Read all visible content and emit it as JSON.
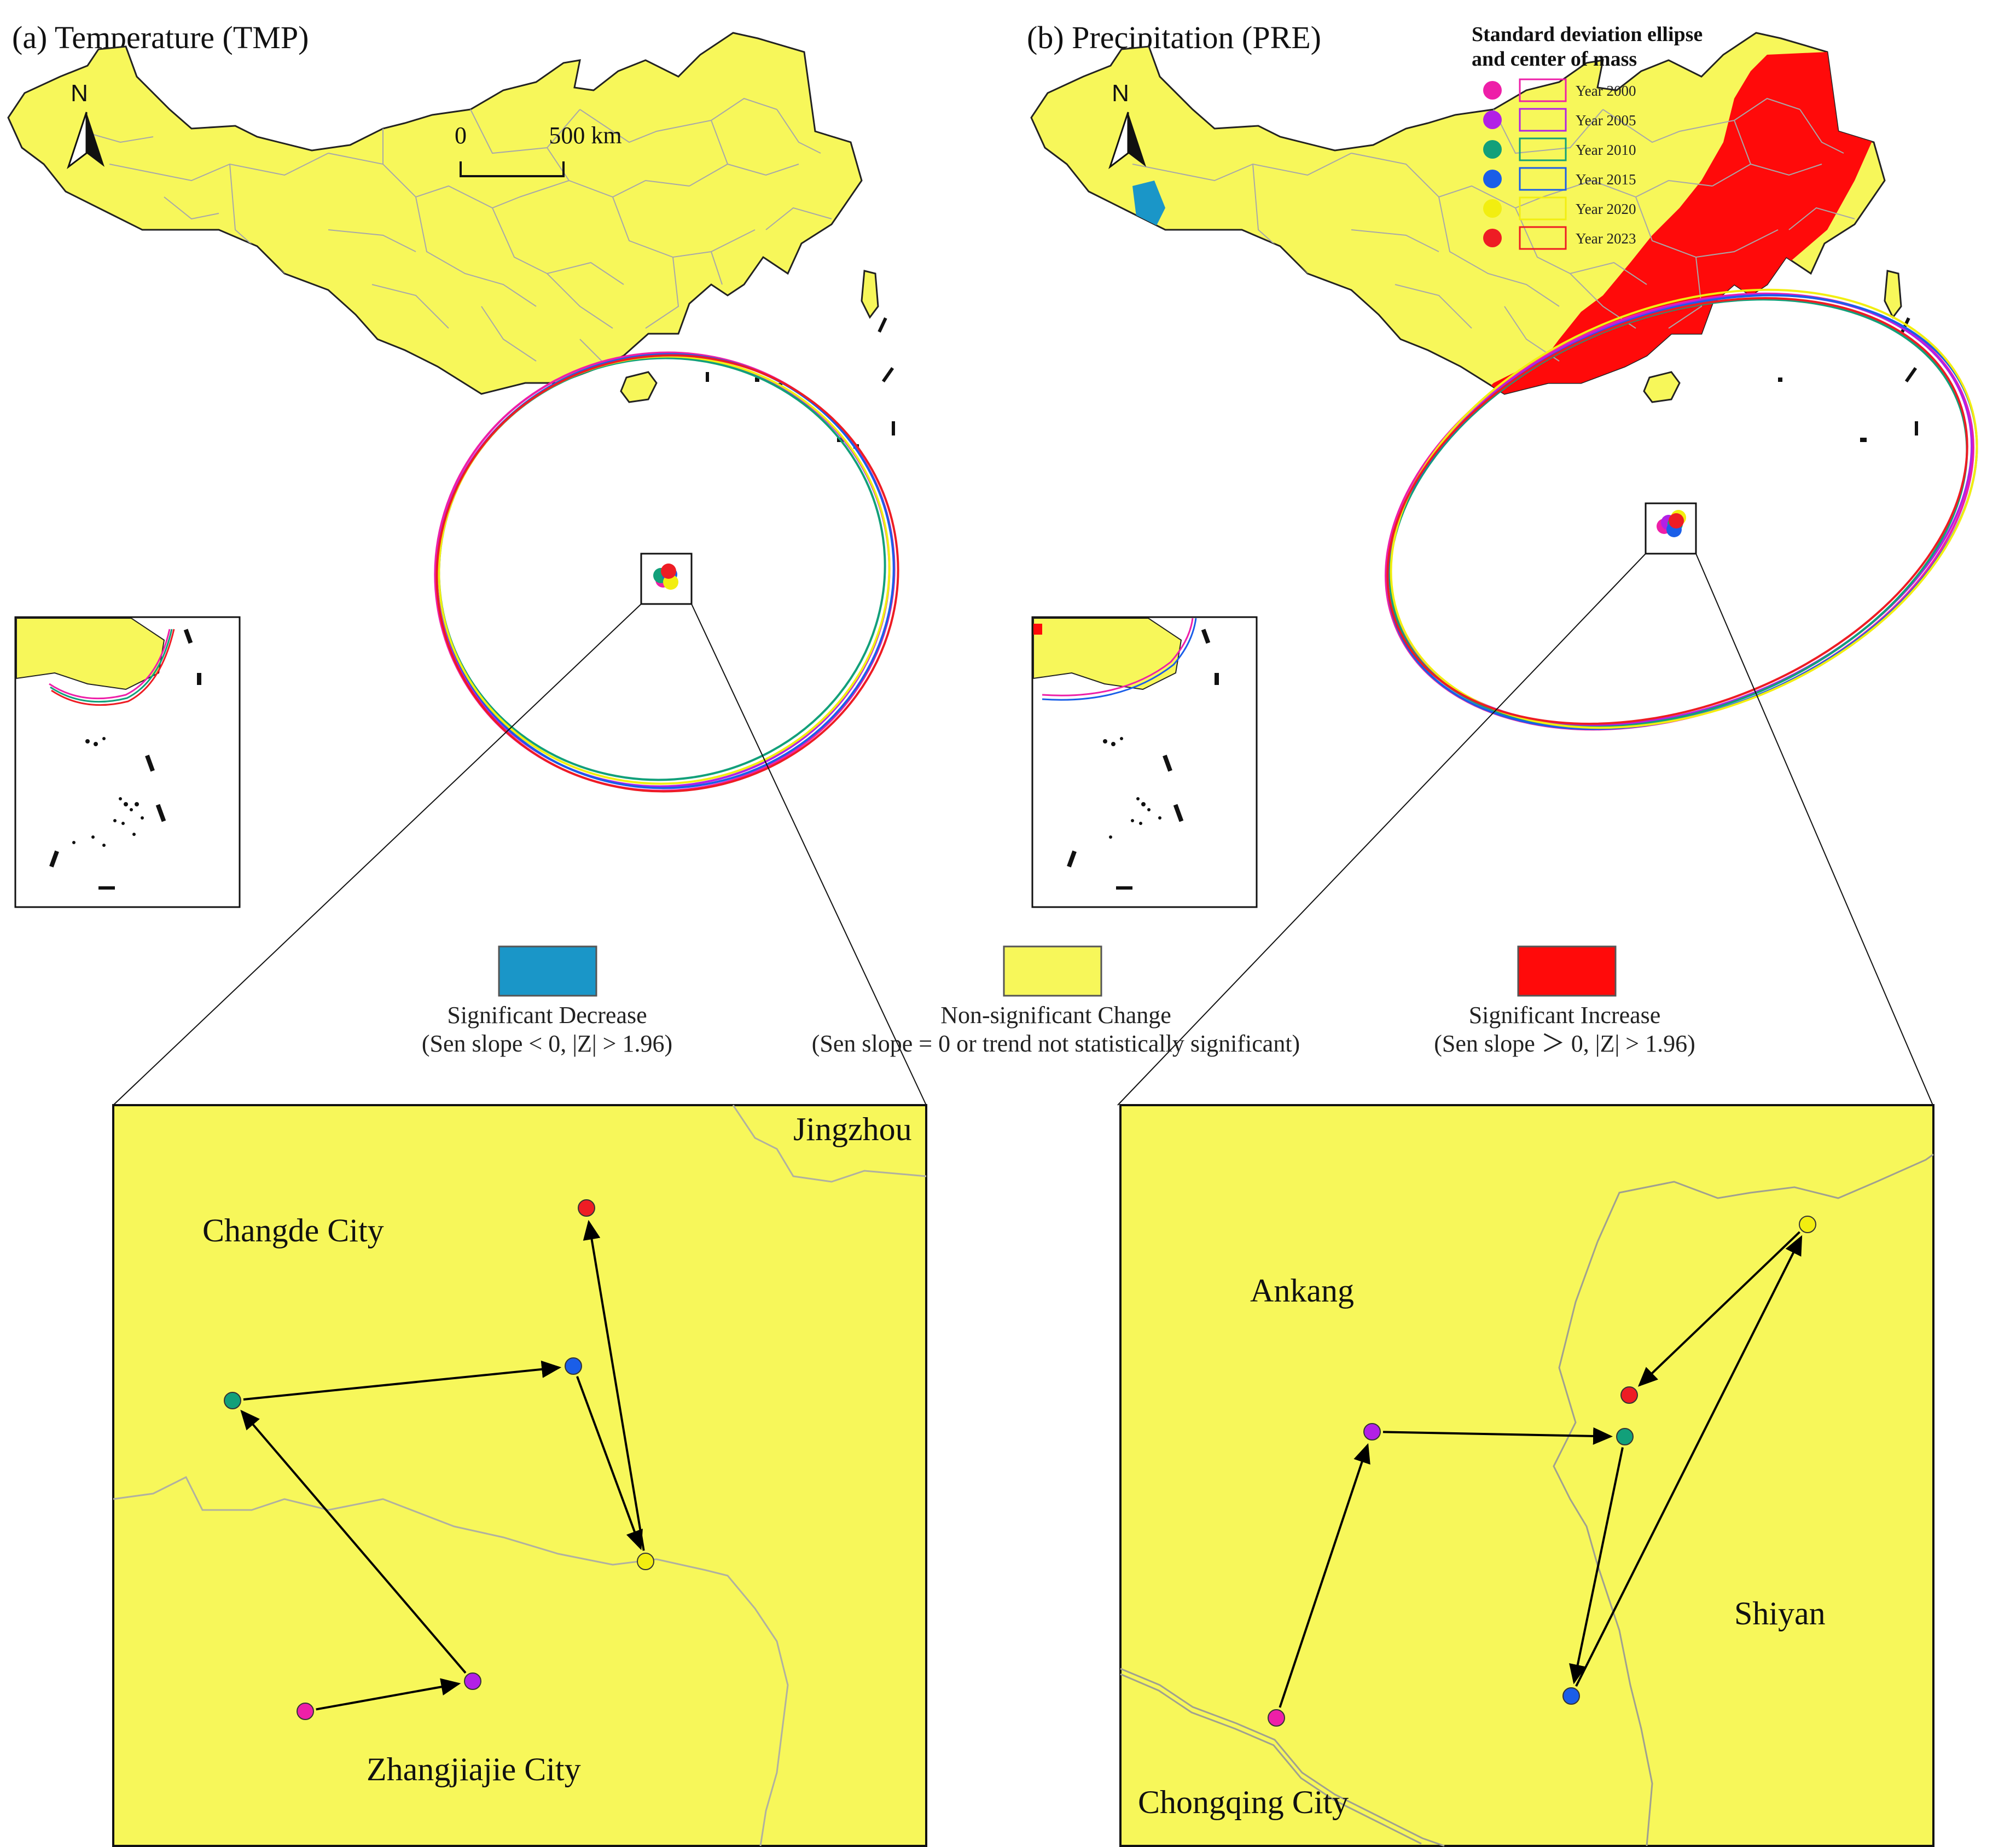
{
  "panels": {
    "a": {
      "title": "(a) Temperature (TMP)"
    },
    "b": {
      "title": "(b) Precipitation (PRE)"
    }
  },
  "north_label": "N",
  "scale_bar": {
    "zero": "0",
    "length": "500 km"
  },
  "ellipse_legend": {
    "heading_line1": "Standard deviation ellipse",
    "heading_line2": "and center of mass",
    "entries": [
      {
        "year": "Year 2000",
        "color": "#ee1fa8"
      },
      {
        "year": "Year 2005",
        "color": "#b220e6"
      },
      {
        "year": "Year 2010",
        "color": "#12a07a"
      },
      {
        "year": "Year 2015",
        "color": "#1a5ee8"
      },
      {
        "year": "Year 2020",
        "color": "#f2ee10"
      },
      {
        "year": "Year 2023",
        "color": "#ee1c24"
      }
    ]
  },
  "trend_legend": {
    "decrease": {
      "label": "Significant Decrease",
      "rule": "(Sen slope < 0, |Z| > 1.96)",
      "color": "#1a96c8"
    },
    "nonsig": {
      "label": "Non-significant Change",
      "rule": "(Sen slope = 0  or trend not statistically significant)",
      "color": "#f7f75a"
    },
    "increase": {
      "label": "Significant Increase",
      "rule": "(Sen slope ＞ 0, |Z| > 1.96)",
      "color": "#ff0a0a"
    }
  },
  "zoom_a": {
    "cities": {
      "jingzhou": "Jingzhou",
      "changde": "Changde City",
      "zhangjiajie": "Zhangjiajie City"
    },
    "centers_order": [
      "Year 2000",
      "Year 2005",
      "Year 2010",
      "Year 2015",
      "Year 2020",
      "Year 2023"
    ]
  },
  "zoom_b": {
    "cities": {
      "ankang": "Ankang",
      "shiyan": "Shiyan",
      "chongqing": "Chongqing City"
    },
    "centers_order": [
      "Year 2000",
      "Year 2005",
      "Year 2010",
      "Year 2015",
      "Year 2020",
      "Year 2023"
    ]
  },
  "map_colors": {
    "land": "#f7f75a",
    "boundary": "#a8a8a8",
    "coast": "#111111"
  }
}
